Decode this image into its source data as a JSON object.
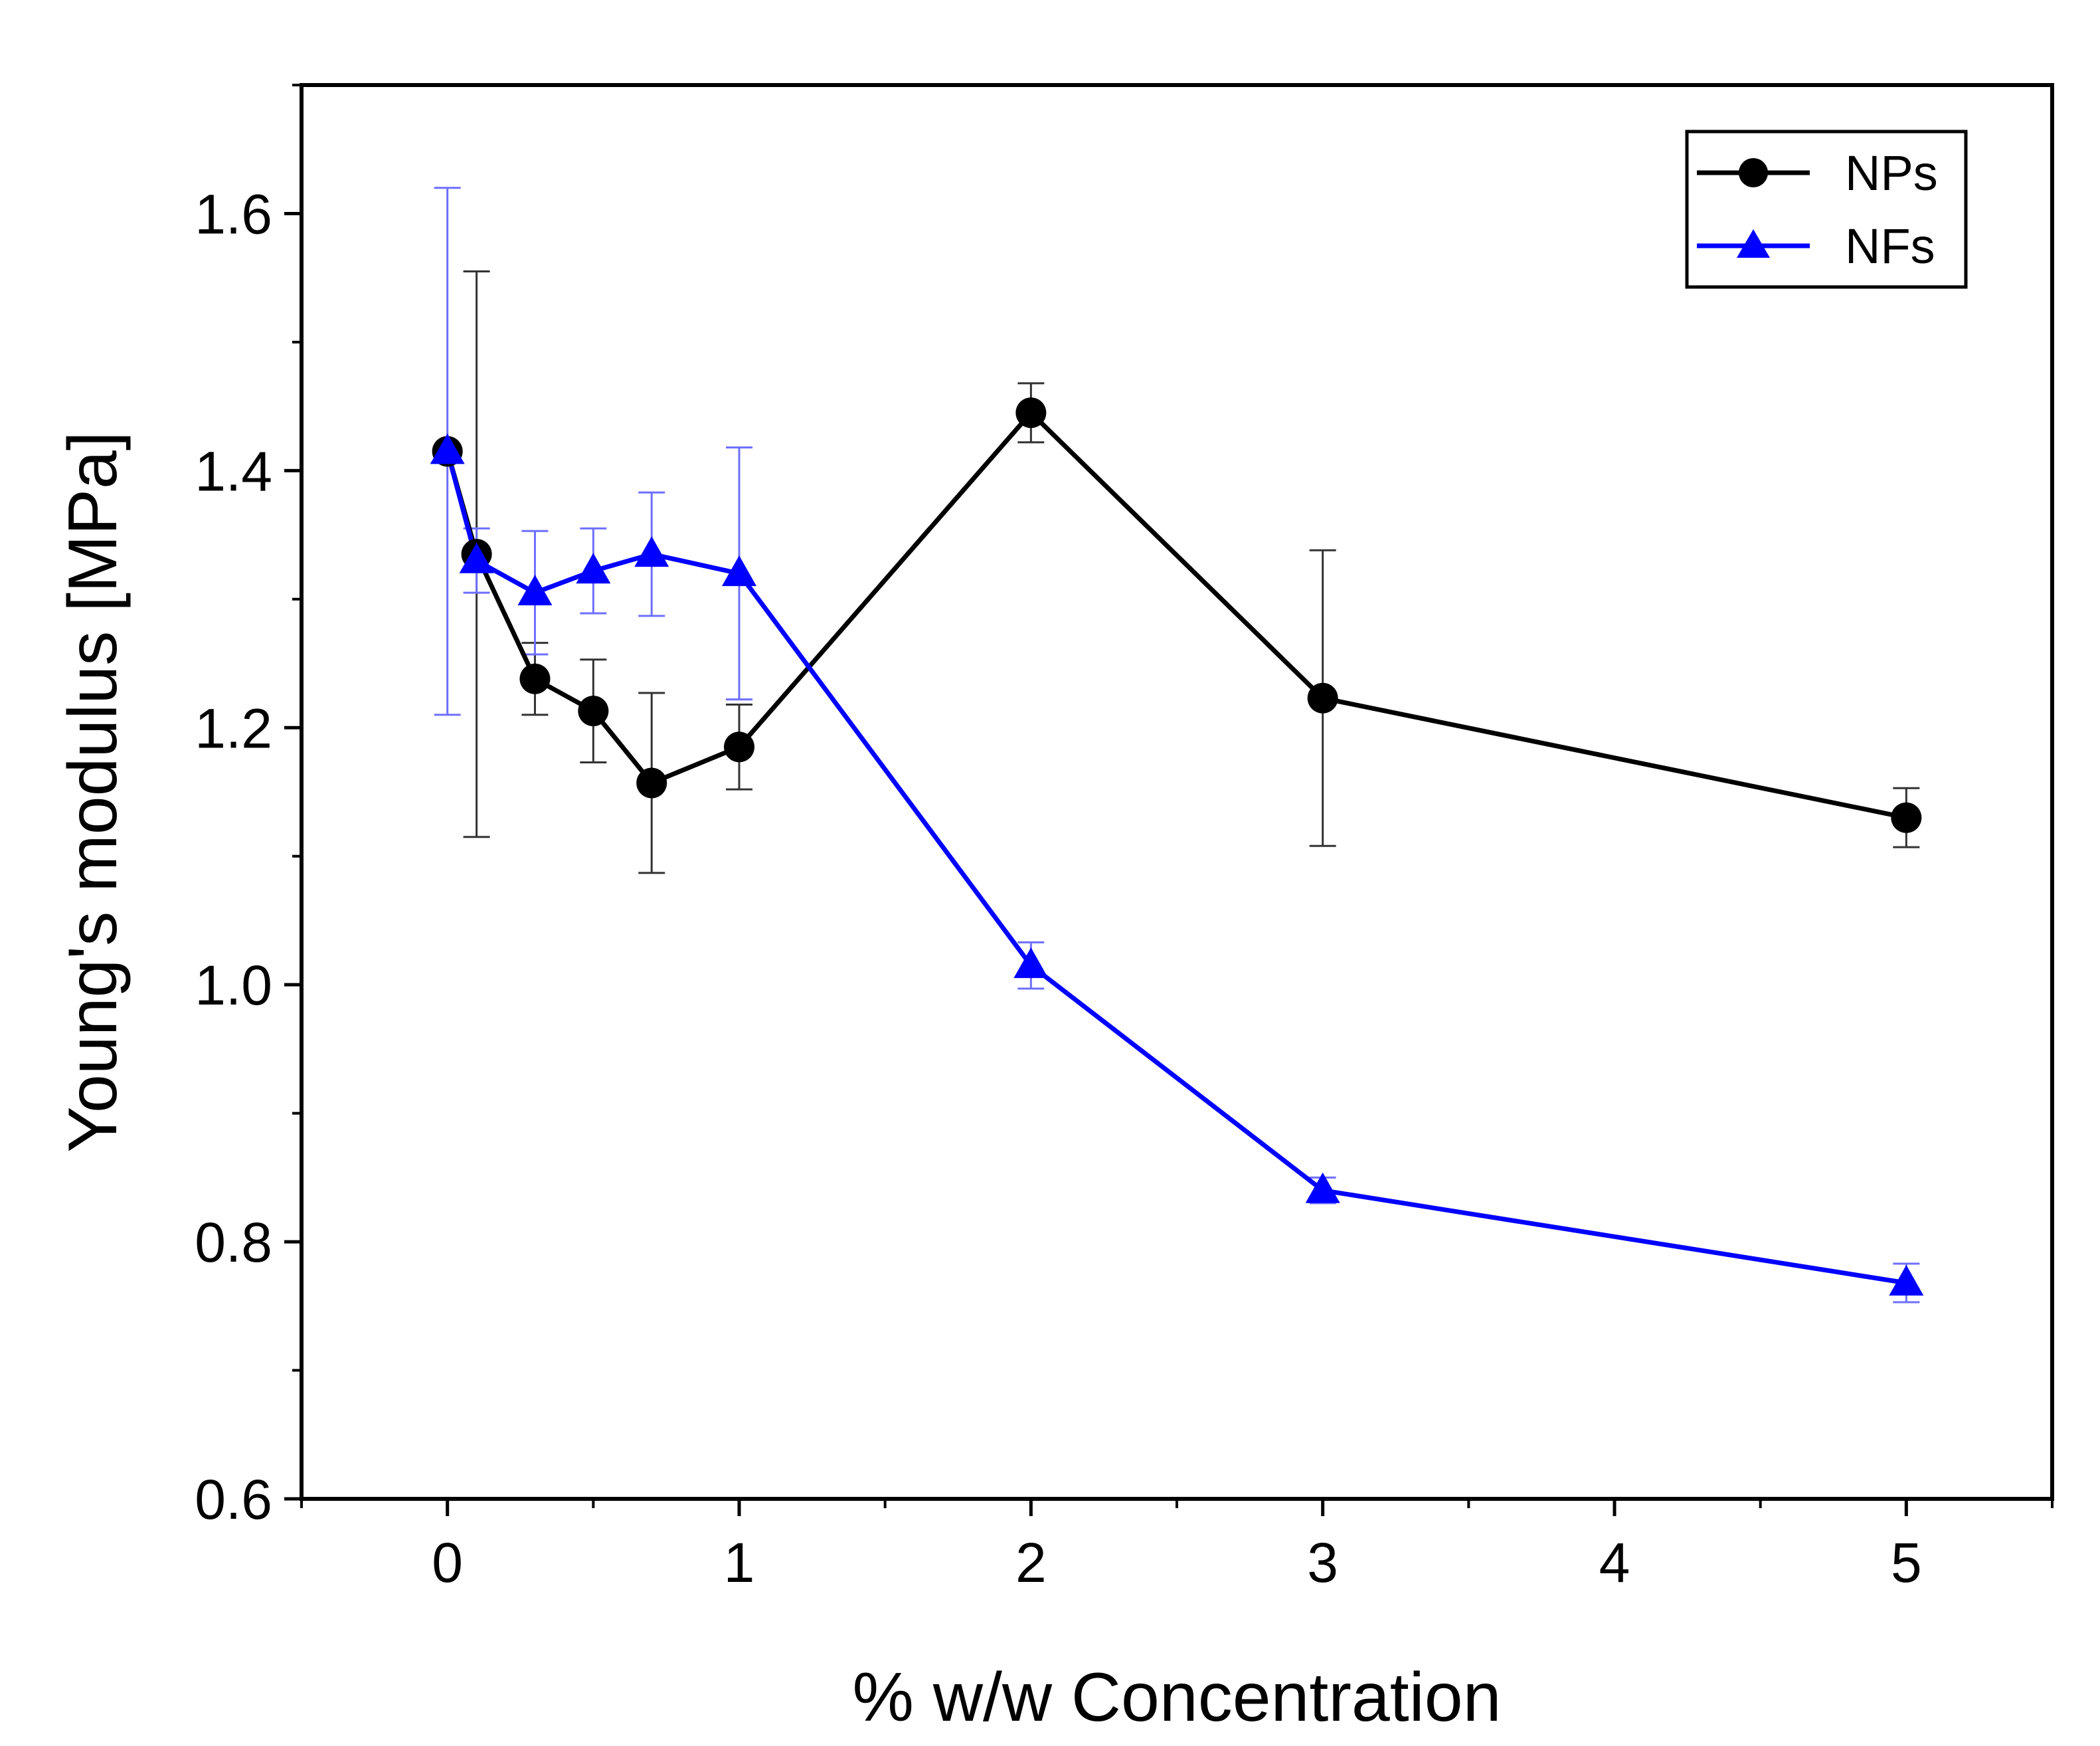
{
  "chart_data": {
    "type": "line",
    "xlabel": "% w/w Concentration",
    "ylabel": "Young's modulus [MPa]",
    "xlim": [
      -0.5,
      5.5
    ],
    "ylim": [
      0.6,
      1.7
    ],
    "xticks": [
      0,
      1,
      2,
      3,
      4,
      5
    ],
    "yticks": [
      0.6,
      0.8,
      1.0,
      1.2,
      1.4,
      1.6
    ],
    "xtick_labels": [
      "0",
      "1",
      "2",
      "3",
      "4",
      "5"
    ],
    "ytick_labels": [
      "0.6",
      "0.8",
      "1.0",
      "1.2",
      "1.4",
      "1.6"
    ],
    "grid": false,
    "legend_position": "top-right",
    "series": [
      {
        "name": "NPs",
        "color": "#000000",
        "marker": "circle",
        "x": [
          0,
          0.1,
          0.3,
          0.5,
          0.7,
          1,
          2,
          3,
          5
        ],
        "y": [
          1.415,
          1.335,
          1.238,
          1.213,
          1.157,
          1.185,
          1.445,
          1.223,
          1.13
        ],
        "err": [
          0.0,
          0.22,
          0.028,
          0.04,
          0.07,
          0.033,
          0.023,
          0.115,
          0.023
        ]
      },
      {
        "name": "NFs",
        "color": "#0000ff",
        "marker": "triangle",
        "x": [
          0,
          0.1,
          0.3,
          0.5,
          0.7,
          1,
          2,
          3,
          5
        ],
        "y": [
          1.415,
          1.33,
          1.305,
          1.322,
          1.335,
          1.32,
          1.015,
          0.84,
          0.768
        ],
        "err": [
          0.205,
          0.025,
          0.048,
          0.033,
          0.048,
          0.098,
          0.018,
          0.01,
          0.015
        ]
      }
    ]
  }
}
